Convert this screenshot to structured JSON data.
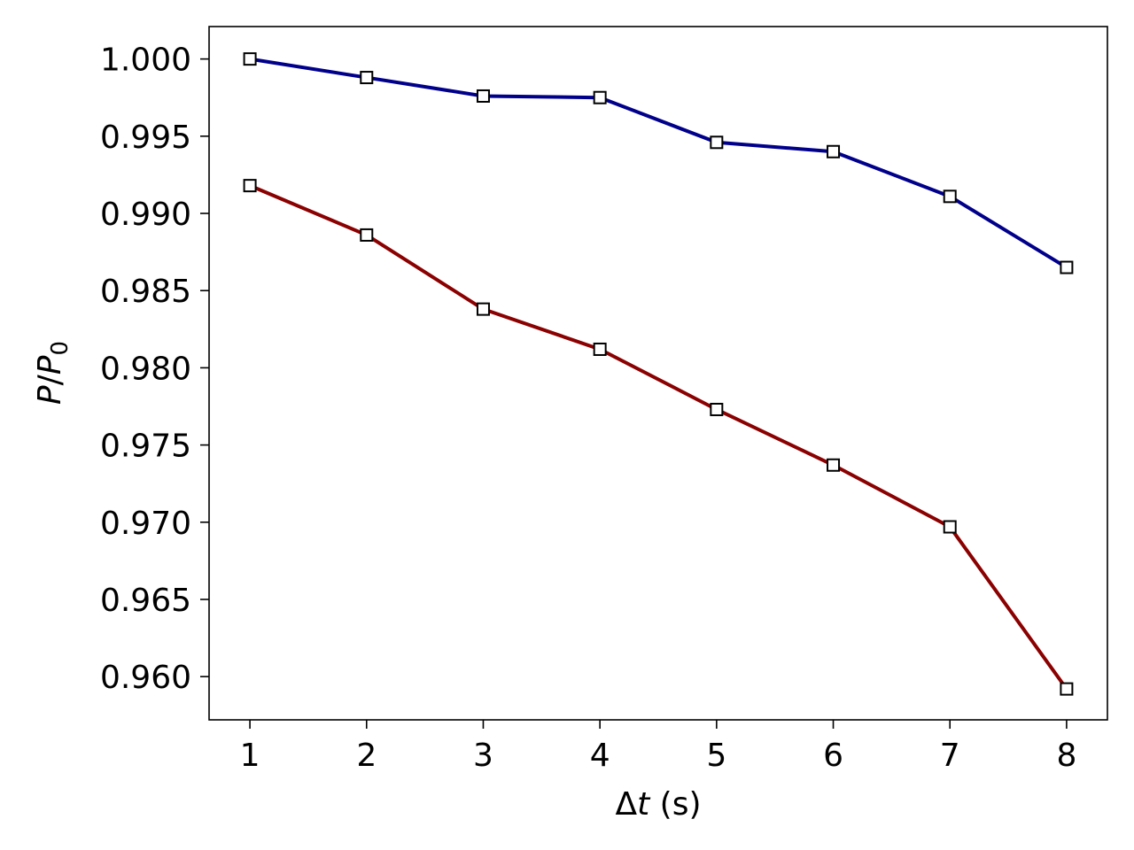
{
  "chart_data": {
    "type": "line",
    "x": [
      1,
      2,
      3,
      4,
      5,
      6,
      7,
      8
    ],
    "series": [
      {
        "color": "#00008b",
        "marker": "square-open",
        "values": [
          1.0,
          0.9988,
          0.9976,
          0.9975,
          0.9946,
          0.994,
          0.9911,
          0.9865
        ]
      },
      {
        "color": "#8b0000",
        "marker": "square-open",
        "values": [
          0.9918,
          0.9886,
          0.9838,
          0.9812,
          0.9773,
          0.9737,
          0.9697,
          0.9592
        ]
      }
    ],
    "title": "",
    "xlabel": {
      "prefix": "Δ",
      "var": "t",
      "suffix": " (s)"
    },
    "ylabel": {
      "var1": "P",
      "slash": "/",
      "var2": "P",
      "sub": "0"
    },
    "xlim": [
      0.65,
      8.35
    ],
    "ylim": [
      0.9572,
      1.0021
    ],
    "xticks": [
      1,
      2,
      3,
      4,
      5,
      6,
      7,
      8
    ],
    "xtick_labels": [
      "1",
      "2",
      "3",
      "4",
      "5",
      "6",
      "7",
      "8"
    ],
    "yticks": [
      0.96,
      0.965,
      0.97,
      0.975,
      0.98,
      0.985,
      0.99,
      0.995,
      1.0
    ],
    "ytick_labels": [
      "0.960",
      "0.965",
      "0.970",
      "0.975",
      "0.980",
      "0.985",
      "0.990",
      "0.995",
      "1.000"
    ],
    "grid": false,
    "legend": "none"
  }
}
